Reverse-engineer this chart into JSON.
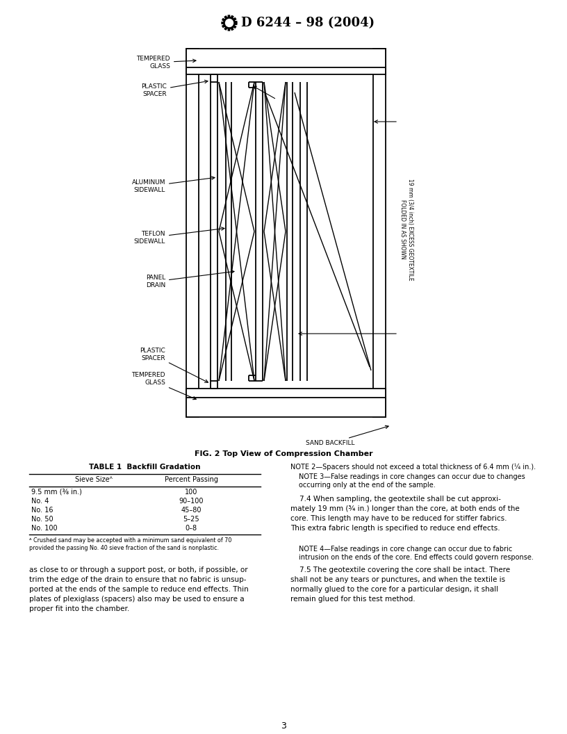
{
  "title": "D 6244 – 98 (2004)",
  "fig_caption": "FIG. 2 Top View of Compression Chamber",
  "page_number": "3",
  "table_title": "TABLE 1  Backfill Gradation",
  "table_headers": [
    "Sieve Sizeᴬ",
    "Percent Passing"
  ],
  "table_rows": [
    [
      "9.5 mm (⅜ in.)",
      "100"
    ],
    [
      "No. 4",
      "90–100"
    ],
    [
      "No. 16",
      "45–80"
    ],
    [
      "No. 50",
      "5–25"
    ],
    [
      "No. 100",
      "0–8"
    ]
  ],
  "table_footnote": "ᴬ Crushed sand may be accepted with a minimum sand equivalent of 70\nprovided the passing No. 40 sieve fraction of the sand is nonplastic.",
  "notes": [
    "NOTE 2—Spacers should not exceed a total thickness of 6.4 mm (¼ in.).",
    "NOTE 3—False readings in core changes can occur due to changes\noccurring only at the end of the sample."
  ],
  "para_74": "    7.4 When sampling, the geotextile shall be cut approxi-\nmately 19 mm (¾ in.) longer than the core, at both ends of the\ncore. This length may have to be reduced for stiffer fabrics.\nThis extra fabric length is specified to reduce end effects.",
  "note_4": "NOTE 4—False readings in core change can occur due to fabric\nintrusion on the ends of the core. End effects could govern response.",
  "para_75": "    7.5 The geotextile covering the core shall be intact. There\nshall not be any tears or punctures, and when the textile is\nnormally glued to the core for a particular design, it shall\nremain glued for this test method.",
  "left_para": "as close to or through a support post, or both, if possible, or\ntrim the edge of the drain to ensure that no fabric is unsup-\nported at the ends of the sample to reduce end effects. Thin\nplates of plexiglass (spacers) also may be used to ensure a\nproper fit into the chamber.",
  "lbl_tempered_top": "TEMPERED\nGLASS",
  "lbl_plastic_top": "PLASTIC\nSPACER",
  "lbl_aluminum": "ALUMINUM\nSIDEWALL",
  "lbl_teflon": "TEFLON\nSIDEWALL",
  "lbl_panel": "PANEL\nDRAIN",
  "lbl_plastic_bot": "PLASTIC\nSPACER",
  "lbl_tempered_bot": "TEMPERED\nGLASS",
  "lbl_sand": "SAND BACKFILL",
  "lbl_geotextile": "19 mm (3/4 inch) EXCESS GEOTEXTILE\nFOLDED IN AS SHOWN",
  "bg_color": "#ffffff"
}
